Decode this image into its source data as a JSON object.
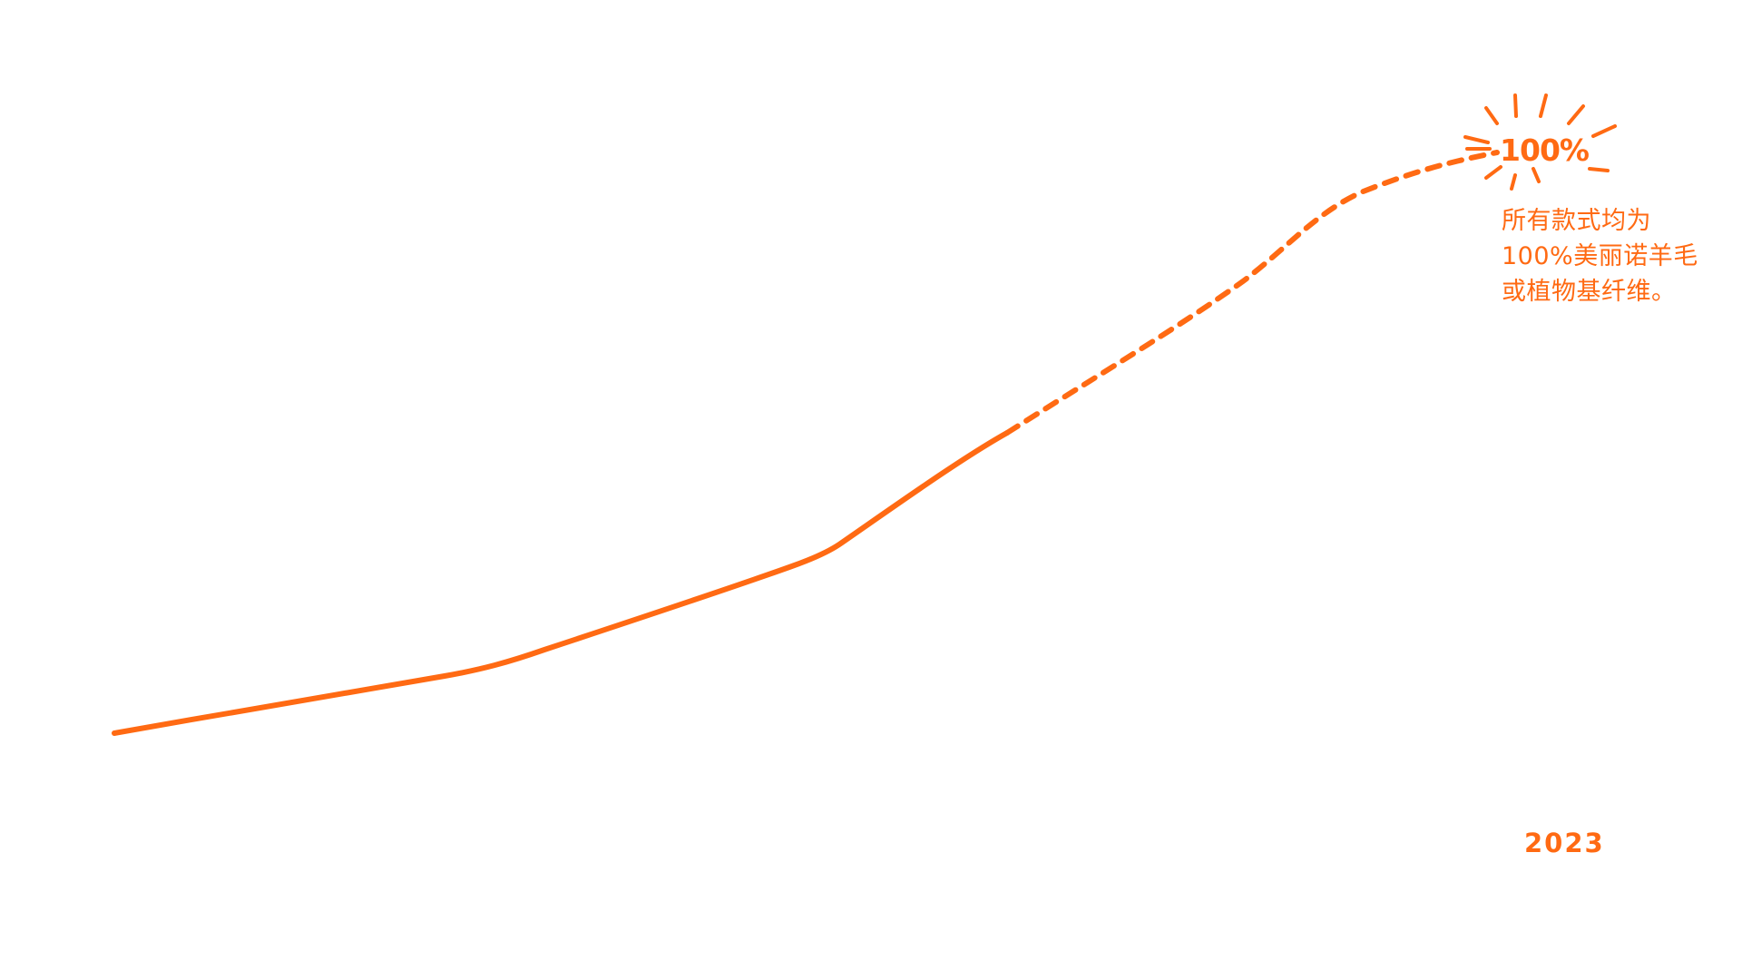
{
  "chart_data": {
    "type": "line",
    "title": "",
    "xlabel": "",
    "ylabel": "",
    "x_end_label": "2023",
    "ylim": [
      0,
      100
    ],
    "series": [
      {
        "style": "solid",
        "points": [
          {
            "x": 0.0,
            "y": 14
          },
          {
            "x": 0.25,
            "y": 28
          },
          {
            "x": 0.49,
            "y": 48
          },
          {
            "x": 0.6,
            "y": 70
          }
        ]
      },
      {
        "style": "dashed",
        "points": [
          {
            "x": 0.6,
            "y": 70
          },
          {
            "x": 0.8,
            "y": 86
          },
          {
            "x": 1.0,
            "y": 100
          }
        ]
      }
    ],
    "peak_value_label": "100%",
    "annotation_lines": [
      "所有款式均为",
      "100%美丽诺羊毛",
      "或植物基纤维。"
    ],
    "color": "#FF6A13"
  }
}
